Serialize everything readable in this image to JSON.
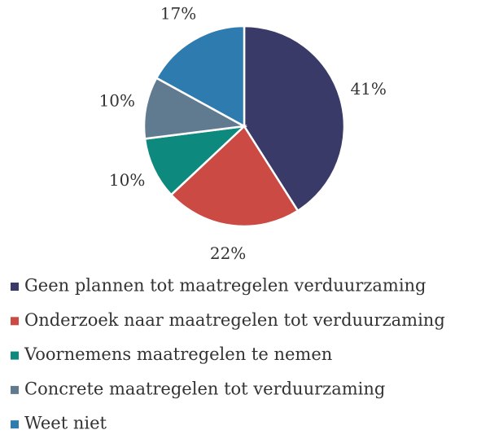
{
  "chart_data": {
    "type": "pie",
    "categories": [
      "Geen plannen tot maatregelen verduurzaming",
      "Onderzoek naar maatregelen tot verduurzaming",
      "Voornemens maatregelen te nemen",
      "Concrete maatregelen tot verduurzaming",
      "Weet niet"
    ],
    "values": [
      41,
      22,
      10,
      10,
      17
    ],
    "value_labels": [
      "41%",
      "22%",
      "10%",
      "10%",
      "17%"
    ],
    "colors": [
      "#3a3a68",
      "#cb4a43",
      "#0e897d",
      "#607b8f",
      "#2e7bb0"
    ],
    "legend": "bottom"
  }
}
